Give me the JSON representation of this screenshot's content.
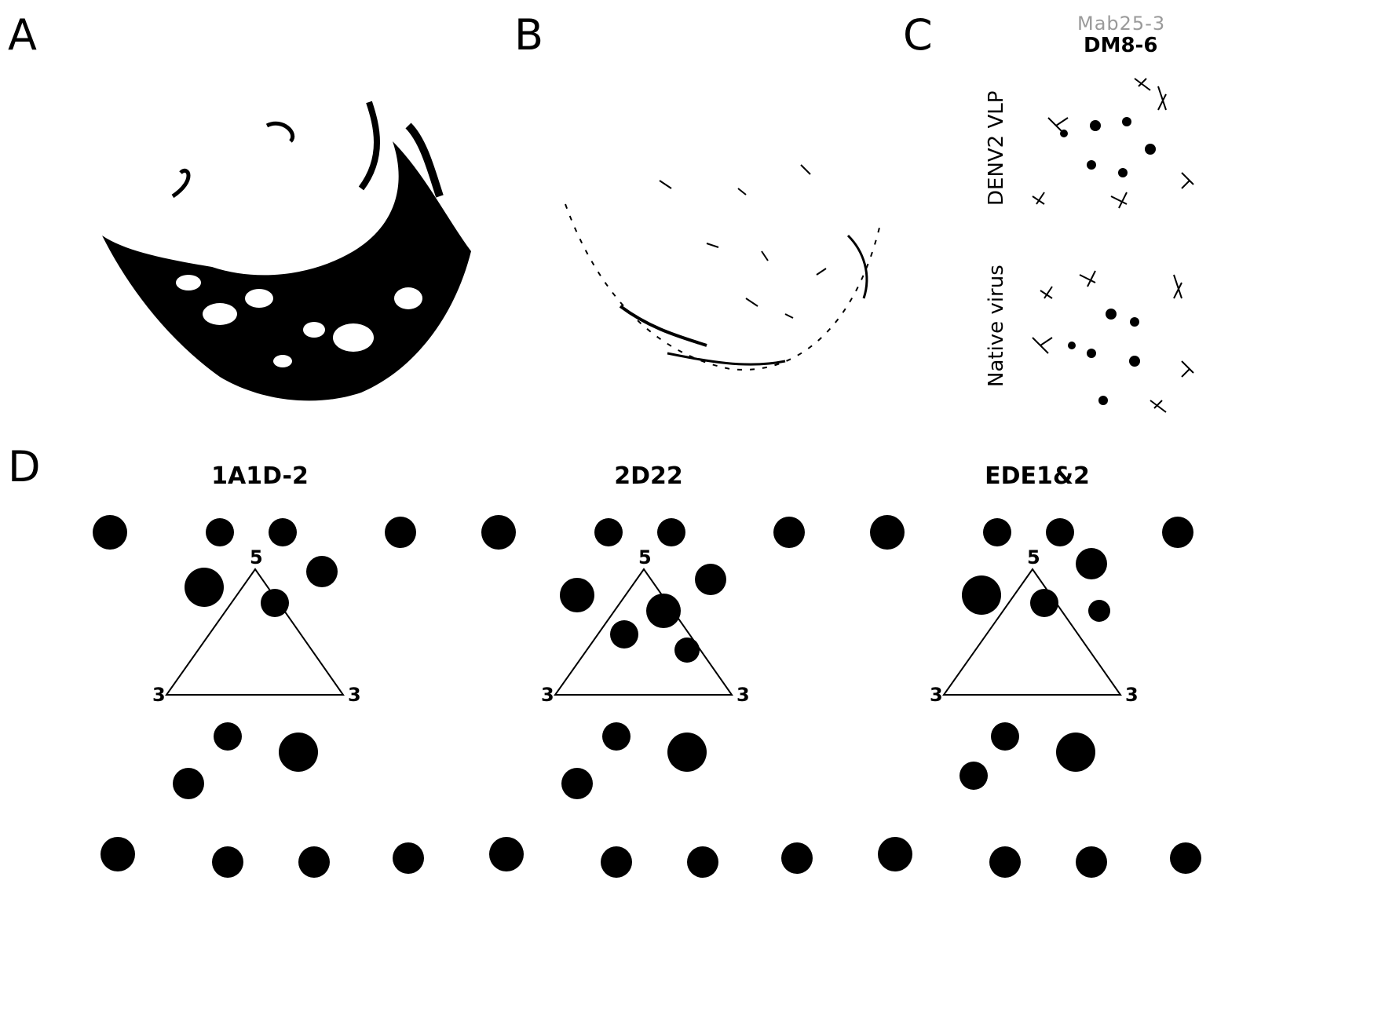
{
  "panels": {
    "A": {
      "letter": "A"
    },
    "B": {
      "letter": "B"
    },
    "C": {
      "letter": "C",
      "faded_label": "Mab25-3",
      "title": "DM8-6",
      "rows": [
        "DENV2 VLP",
        "Native virus"
      ]
    },
    "D": {
      "letter": "D",
      "subpanels": [
        {
          "title": "1A1D-2",
          "vertex_top": "5",
          "vertex_left": "3",
          "vertex_right": "3"
        },
        {
          "title": "2D22",
          "vertex_top": "5",
          "vertex_left": "3",
          "vertex_right": "3"
        },
        {
          "title": "EDE1&2",
          "vertex_top": "5",
          "vertex_left": "3",
          "vertex_right": "3"
        }
      ]
    }
  },
  "colors": {
    "ink": "#000000",
    "faded": "#9a9a9a",
    "background": "#ffffff"
  }
}
